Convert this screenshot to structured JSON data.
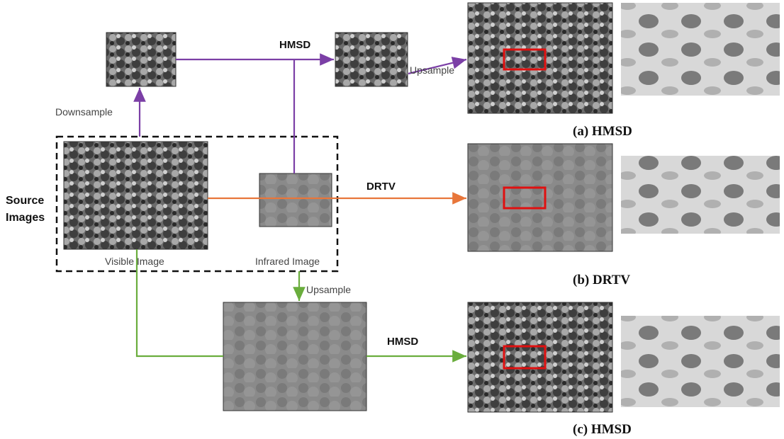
{
  "source_group": {
    "title_lines": [
      "Source",
      "Images"
    ],
    "visible_caption": "Visible Image",
    "infrared_caption": "Infrared Image"
  },
  "edges": [
    {
      "label": "Downsample"
    },
    {
      "label": "HMSD"
    },
    {
      "label": "Upsample"
    },
    {
      "label": "DRTV"
    },
    {
      "label": "Upsample"
    },
    {
      "label": "HMSD"
    }
  ],
  "results": [
    {
      "caption": "(a) HMSD"
    },
    {
      "caption": "(b) DRTV"
    },
    {
      "caption": "(c) HMSD"
    }
  ]
}
